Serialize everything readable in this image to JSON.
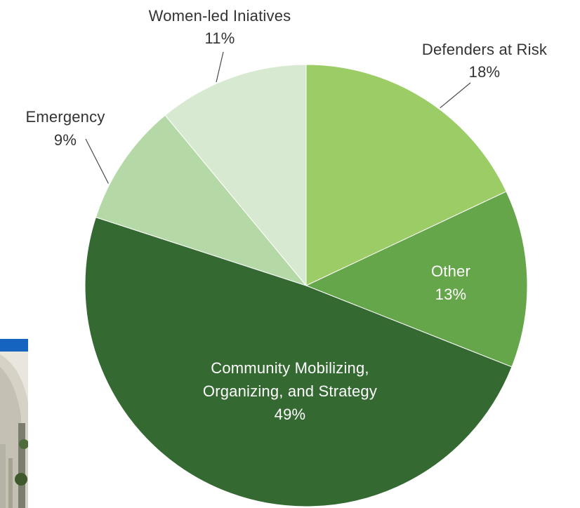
{
  "chart_data": {
    "type": "pie",
    "title": "",
    "start": "12 o'clock",
    "direction": "clockwise",
    "slices": [
      {
        "label": "Defenders at Risk",
        "percent_text": "18%",
        "value": 18,
        "color": "#9ccc65",
        "label_placement": "outside"
      },
      {
        "label": "Other",
        "percent_text": "13%",
        "value": 13,
        "color": "#66a64a",
        "label_placement": "inside"
      },
      {
        "label_lines": [
          "Community Mobilizing,",
          "Organizing, and Strategy"
        ],
        "label": "Community Mobilizing, Organizing, and Strategy",
        "percent_text": "49%",
        "value": 49,
        "color": "#346932",
        "label_placement": "inside"
      },
      {
        "label": "Emergency",
        "percent_text": "9%",
        "value": 9,
        "color": "#b4d8a6",
        "label_placement": "outside"
      },
      {
        "label": "Women-led Iniatives",
        "percent_text": "11%",
        "value": 11,
        "color": "#d8e9d1",
        "label_placement": "outside"
      }
    ]
  },
  "photo": {
    "description_colors": [
      "#1565c0",
      "#c8c8c0",
      "#3a5a2a"
    ]
  }
}
